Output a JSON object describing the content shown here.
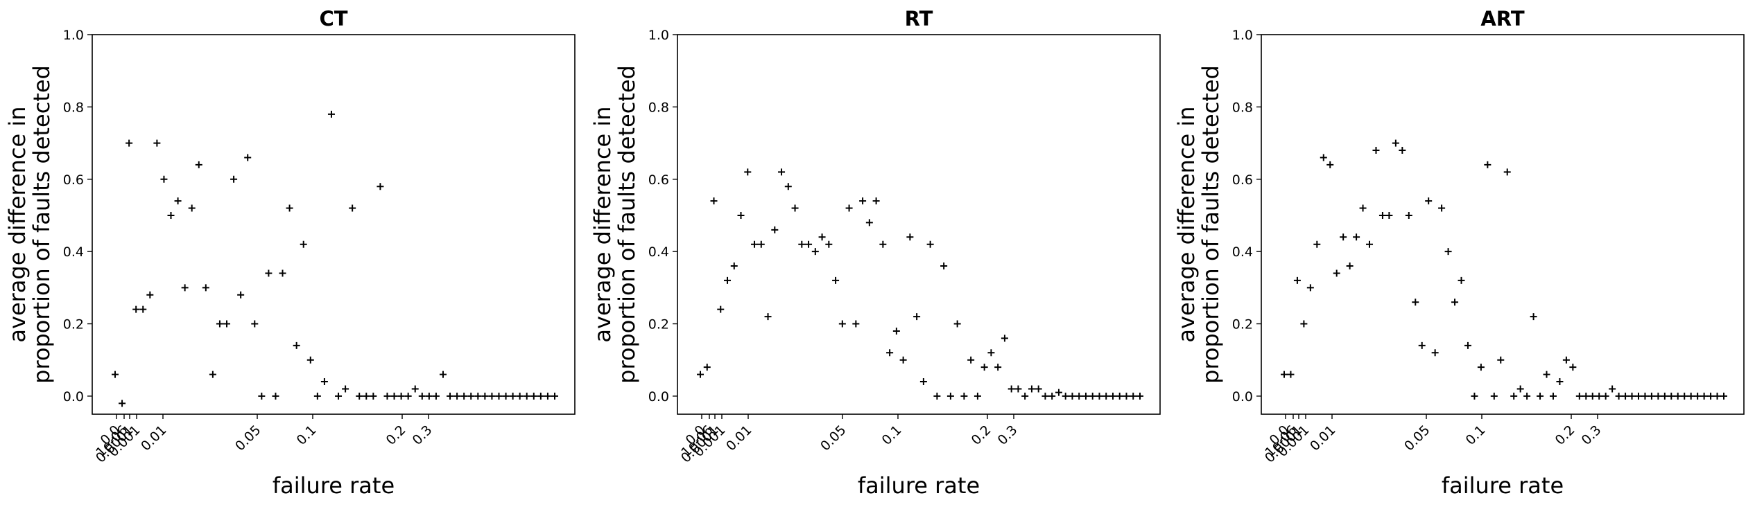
{
  "chart_data": [
    {
      "type": "scatter",
      "title": "CT",
      "xlabel": "failure rate",
      "ylabel": "average difference in\nproportion of faults detected",
      "ylim": [
        -0.05,
        1.0
      ],
      "yticks": [
        "0.0",
        "0.2",
        "0.4",
        "0.6",
        "0.8",
        "1.0"
      ],
      "xticks": [
        {
          "value": 0.0,
          "label": "0.0"
        },
        {
          "value": 1e-06,
          "label": "1e-06"
        },
        {
          "value": 0.0001,
          "label": "0.0001"
        },
        {
          "value": 0.001,
          "label": "0.001"
        },
        {
          "value": 0.01,
          "label": "0.01"
        },
        {
          "value": 0.05,
          "label": "0.05"
        },
        {
          "value": 0.1,
          "label": "0.1"
        },
        {
          "value": 0.2,
          "label": "0.2"
        },
        {
          "value": 0.3,
          "label": "0.3"
        }
      ],
      "marker": "+",
      "grid": false,
      "y": [
        0.06,
        -0.02,
        0.7,
        0.24,
        0.24,
        0.28,
        0.7,
        0.6,
        0.5,
        0.54,
        0.3,
        0.52,
        0.64,
        0.3,
        0.06,
        0.2,
        0.2,
        0.6,
        0.28,
        0.66,
        0.2,
        0.0,
        0.34,
        0.0,
        0.34,
        0.52,
        0.14,
        0.42,
        0.1,
        0.0,
        0.04,
        0.78,
        0.0,
        0.02,
        0.52,
        0.0,
        0.0,
        0.0,
        0.58,
        0.0,
        0.0,
        0.0,
        0.0,
        0.02,
        0.0,
        0.0,
        0.0,
        0.06,
        0.0,
        0.0,
        0.0,
        0.0,
        0.0,
        0.0,
        0.0,
        0.0,
        0.0,
        0.0,
        0.0,
        0.0,
        0.0,
        0.0,
        0.0,
        0.0
      ]
    },
    {
      "type": "scatter",
      "title": "RT",
      "xlabel": "failure rate",
      "ylabel": "average difference in\nproportion of faults detected",
      "ylim": [
        -0.05,
        1.0
      ],
      "yticks": [
        "0.0",
        "0.2",
        "0.4",
        "0.6",
        "0.8",
        "1.0"
      ],
      "xticks": [
        {
          "value": 0.0,
          "label": "0.0"
        },
        {
          "value": 1e-06,
          "label": "1e-06"
        },
        {
          "value": 0.0001,
          "label": "0.0001"
        },
        {
          "value": 0.001,
          "label": "0.001"
        },
        {
          "value": 0.01,
          "label": "0.01"
        },
        {
          "value": 0.05,
          "label": "0.05"
        },
        {
          "value": 0.1,
          "label": "0.1"
        },
        {
          "value": 0.2,
          "label": "0.2"
        },
        {
          "value": 0.3,
          "label": "0.3"
        }
      ],
      "marker": "+",
      "grid": false,
      "y": [
        0.06,
        0.08,
        0.54,
        0.24,
        0.32,
        0.36,
        0.5,
        0.62,
        0.42,
        0.42,
        0.22,
        0.46,
        0.62,
        0.58,
        0.52,
        0.42,
        0.42,
        0.4,
        0.44,
        0.42,
        0.32,
        0.2,
        0.52,
        0.2,
        0.54,
        0.48,
        0.54,
        0.42,
        0.12,
        0.18,
        0.1,
        0.44,
        0.22,
        0.04,
        0.42,
        0.0,
        0.36,
        0.0,
        0.2,
        0.0,
        0.1,
        0.0,
        0.08,
        0.12,
        0.08,
        0.16,
        0.02,
        0.02,
        0.0,
        0.02,
        0.02,
        0.0,
        0.0,
        0.01,
        0.0,
        0.0,
        0.0,
        0.0,
        0.0,
        0.0,
        0.0,
        0.0,
        0.0,
        0.0,
        0.0,
        0.0
      ]
    },
    {
      "type": "scatter",
      "title": "ART",
      "xlabel": "failure rate",
      "ylabel": "average difference in\nproportion of faults detected",
      "ylim": [
        -0.05,
        1.0
      ],
      "yticks": [
        "0.0",
        "0.2",
        "0.4",
        "0.6",
        "0.8",
        "1.0"
      ],
      "xticks": [
        {
          "value": 0.0,
          "label": "0.0"
        },
        {
          "value": 1e-06,
          "label": "1e-06"
        },
        {
          "value": 0.0001,
          "label": "0.0001"
        },
        {
          "value": 0.001,
          "label": "0.001"
        },
        {
          "value": 0.01,
          "label": "0.01"
        },
        {
          "value": 0.05,
          "label": "0.05"
        },
        {
          "value": 0.1,
          "label": "0.1"
        },
        {
          "value": 0.2,
          "label": "0.2"
        },
        {
          "value": 0.3,
          "label": "0.3"
        }
      ],
      "marker": "+",
      "grid": false,
      "y": [
        0.06,
        0.06,
        0.32,
        0.2,
        0.3,
        0.42,
        0.66,
        0.64,
        0.34,
        0.44,
        0.36,
        0.44,
        0.52,
        0.42,
        0.68,
        0.5,
        0.5,
        0.7,
        0.68,
        0.5,
        0.26,
        0.14,
        0.54,
        0.12,
        0.52,
        0.4,
        0.26,
        0.32,
        0.14,
        0.0,
        0.08,
        0.64,
        0.0,
        0.1,
        0.62,
        0.0,
        0.02,
        0.0,
        0.22,
        0.0,
        0.06,
        0.0,
        0.04,
        0.1,
        0.08,
        0.0,
        0.0,
        0.0,
        0.0,
        0.0,
        0.02,
        0.0,
        0.0,
        0.0,
        0.0,
        0.0,
        0.0,
        0.0,
        0.0,
        0.0,
        0.0,
        0.0,
        0.0,
        0.0,
        0.0,
        0.0,
        0.0,
        0.0
      ]
    }
  ]
}
